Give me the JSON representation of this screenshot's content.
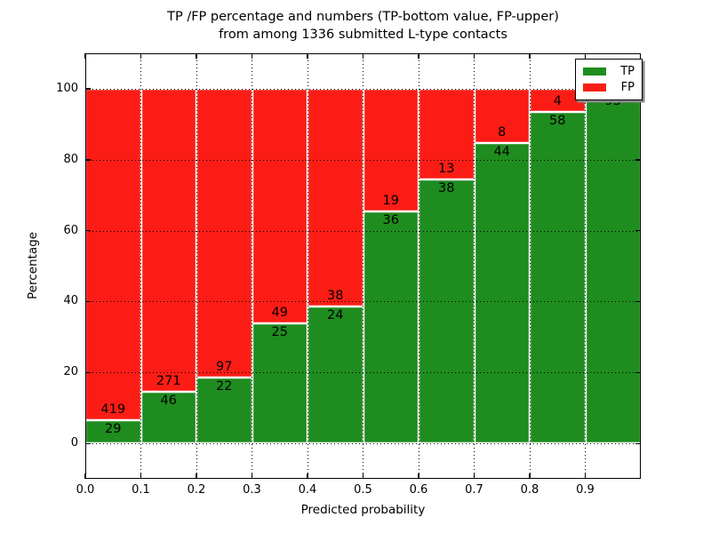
{
  "title": {
    "line1": "TP /FP percentage and numbers (TP-bottom value, FP-upper)",
    "line2": "from among 1336 submitted L-type contacts"
  },
  "axes": {
    "xlabel": "Predicted probability",
    "ylabel": "Percentage",
    "x_tick_labels": [
      "0.0",
      "0.1",
      "0.2",
      "0.3",
      "0.4",
      "0.5",
      "0.6",
      "0.7",
      "0.8",
      "0.9"
    ],
    "y_tick_labels": [
      "0",
      "20",
      "40",
      "60",
      "80",
      "100"
    ]
  },
  "legend": {
    "items": [
      {
        "label": "TP",
        "color": "#1e8c1e"
      },
      {
        "label": "FP",
        "color": "#fb1d15"
      }
    ]
  },
  "chart_data": {
    "type": "bar",
    "stacked": true,
    "title": "TP /FP percentage and numbers (TP-bottom value, FP-upper) from among 1336 submitted L-type contacts",
    "xlabel": "Predicted probability",
    "ylabel": "Percentage",
    "xlim": [
      0.0,
      1.0
    ],
    "ylim": [
      -10,
      110
    ],
    "grid": true,
    "legend_position": "upper right",
    "bin_width": 0.1,
    "categories": [
      "0.0-0.1",
      "0.1-0.2",
      "0.2-0.3",
      "0.3-0.4",
      "0.4-0.5",
      "0.5-0.6",
      "0.6-0.7",
      "0.7-0.8",
      "0.8-0.9",
      "0.9-1.0"
    ],
    "series": [
      {
        "name": "TP",
        "color": "#1e8c1e",
        "counts": [
          29,
          46,
          22,
          25,
          24,
          36,
          38,
          44,
          58,
          95
        ],
        "pct": [
          6.5,
          14.5,
          18.5,
          33.8,
          38.7,
          65.5,
          74.5,
          84.6,
          93.5,
          99.0
        ]
      },
      {
        "name": "FP",
        "color": "#fb1d15",
        "counts": [
          419,
          271,
          97,
          49,
          38,
          19,
          13,
          8,
          4,
          null
        ],
        "pct": [
          93.5,
          85.5,
          81.5,
          66.2,
          61.3,
          34.5,
          25.5,
          15.4,
          6.5,
          1.0
        ]
      }
    ]
  }
}
